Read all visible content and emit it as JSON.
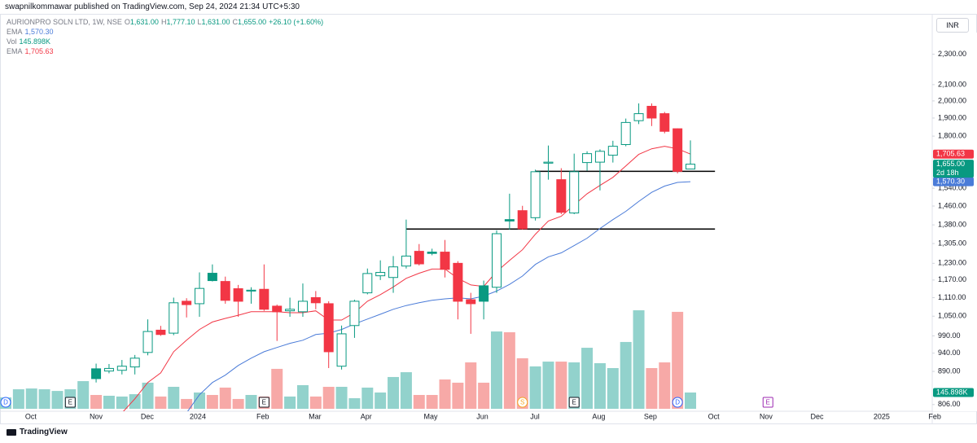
{
  "header": {
    "publisher": "swapnilkommawar published on TradingView.com, Sep 24, 2024 21:34 UTC+5:30"
  },
  "chart_data": {
    "type": "candlestick",
    "title": "AURIONPRO SOLN LTD, 1W, NSE",
    "ohlc_legend": [
      {
        "key": "O",
        "label": "1,631.00"
      },
      {
        "key": "H",
        "label": "1,777.10"
      },
      {
        "key": "L",
        "label": "1,631.00"
      },
      {
        "key": "C",
        "label": "1,655.00"
      }
    ],
    "change": "+26.10 (+1.60%)",
    "currency": "INR",
    "log_scale": true,
    "ylim": [
      790,
      2640
    ],
    "yticks": [
      {
        "value": 806,
        "label": "806.00"
      },
      {
        "value": 890,
        "label": "890.00"
      },
      {
        "value": 940,
        "label": "940.00"
      },
      {
        "value": 990,
        "label": "990.00"
      },
      {
        "value": 1050,
        "label": "1,050.00"
      },
      {
        "value": 1110,
        "label": "1,110.00"
      },
      {
        "value": 1170,
        "label": "1,170.00"
      },
      {
        "value": 1230,
        "label": "1,230.00"
      },
      {
        "value": 1305,
        "label": "1,305.00"
      },
      {
        "value": 1380,
        "label": "1,380.00"
      },
      {
        "value": 1460,
        "label": "1,460.00"
      },
      {
        "value": 1540,
        "label": "1,540.00"
      },
      {
        "value": 1800,
        "label": "1,800.00"
      },
      {
        "value": 1900,
        "label": "1,900.00"
      },
      {
        "value": 2000,
        "label": "2,000.00"
      },
      {
        "value": 2100,
        "label": "2,100.00"
      },
      {
        "value": 2300,
        "label": "2,300.00"
      }
    ],
    "xlim": [
      -0.44,
      71.4
    ],
    "xticks": [
      {
        "value": 1.95,
        "label": "Oct"
      },
      {
        "value": 7,
        "label": "Nov"
      },
      {
        "value": 10.96,
        "label": "Dec"
      },
      {
        "value": 14.87,
        "label": "2024"
      },
      {
        "value": 19.9,
        "label": "Feb"
      },
      {
        "value": 23.94,
        "label": "Mar"
      },
      {
        "value": 27.9,
        "label": "Apr"
      },
      {
        "value": 32.9,
        "label": "May"
      },
      {
        "value": 36.9,
        "label": "Jun"
      },
      {
        "value": 40.96,
        "label": "Jul"
      },
      {
        "value": 45.9,
        "label": "Aug"
      },
      {
        "value": 49.9,
        "label": "Sep"
      },
      {
        "value": 54.8,
        "label": "Oct"
      },
      {
        "value": 58.85,
        "label": "Nov"
      },
      {
        "value": 62.8,
        "label": "Dec"
      },
      {
        "value": 67.8,
        "label": "2025"
      },
      {
        "value": 71.8,
        "label": "Feb"
      }
    ],
    "open": [
      null,
      null,
      null,
      null,
      null,
      null,
      null,
      897,
      891,
      893,
      902,
      942,
      1007,
      998,
      1098,
      1090,
      1194,
      1165,
      1140,
      1132,
      1138,
      1082,
      1067,
      1064,
      1110,
      1090,
      904,
      1021,
      1126,
      1185,
      1179,
      1220,
      1275,
      1272,
      1272,
      1230,
      1103,
      1150,
      1145,
      1402,
      1440,
      1410,
      1660,
      1580,
      1430,
      1663,
      1665,
      1700,
      1755,
      1885,
      1968,
      1925,
      1840,
      1631
    ],
    "high": [
      null,
      null,
      null,
      null,
      null,
      null,
      null,
      911,
      910,
      921,
      935,
      1040,
      1020,
      1110,
      1108,
      1197,
      1226,
      1182,
      1153,
      1145,
      1226,
      1087,
      1110,
      1158,
      1132,
      1098,
      1021,
      1103,
      1211,
      1241,
      1257,
      1402,
      1303,
      1285,
      1319,
      1238,
      1126,
      1168,
      1358,
      1515,
      1461,
      1628,
      1750,
      1635,
      1708,
      1720,
      1730,
      1775,
      1897,
      1985,
      1985,
      1935,
      1842,
      1777.1
    ],
    "low": [
      null,
      null,
      null,
      null,
      null,
      null,
      null,
      861,
      885,
      882,
      882,
      934,
      990,
      992,
      1046,
      1048,
      1165,
      1090,
      1048,
      1090,
      1067,
      975,
      1048,
      1048,
      1072,
      899,
      895,
      984,
      1121,
      1170,
      1126,
      1211,
      1222,
      1260,
      1179,
      1040,
      996,
      1040,
      1126,
      1360,
      1360,
      1398,
      1580,
      1425,
      1425,
      1623,
      1530,
      1663,
      1746,
      1866,
      1855,
      1815,
      1610,
      1631
    ],
    "close": [
      null,
      null,
      null,
      null,
      null,
      null,
      null,
      871,
      898,
      904,
      926,
      1003,
      994,
      1093,
      1087,
      1141,
      1168,
      1101,
      1098,
      1135,
      1072,
      1064,
      1072,
      1098,
      1093,
      944,
      996,
      1098,
      1193,
      1197,
      1217,
      1257,
      1228,
      1267,
      1208,
      1098,
      1090,
      1098,
      1344,
      1396,
      1364,
      1618,
      1665,
      1433,
      1618,
      1708,
      1720,
      1746,
      1875,
      1925,
      1900,
      1826,
      1620,
      1655
    ],
    "up_color": "#089981",
    "down_color": "#f23645",
    "close_label": "1,655.00",
    "countdown": "2d 18h",
    "volume": {
      "name": "Vol",
      "last_label": "145.898K",
      "up_color": "#92d2cc",
      "down_color": "#f7a9a7",
      "y2lim": [
        0,
        1000
      ],
      "values": [
        102,
        175,
        182,
        175,
        160,
        175,
        248,
        124,
        117,
        110,
        131,
        234,
        110,
        197,
        88,
        146,
        124,
        190,
        88,
        124,
        110,
        358,
        110,
        212,
        110,
        197,
        197,
        95,
        190,
        146,
        285,
        328,
        124,
        124,
        263,
        234,
        416,
        234,
        693,
        686,
        453,
        380,
        423,
        423,
        416,
        547,
        409,
        365,
        599,
        883,
        365,
        416,
        869,
        145.898
      ]
    },
    "series": [
      {
        "name": "EMA",
        "color": "#4a7bd8",
        "last_label": "1,570.30",
        "values": [
          null,
          null,
          null,
          null,
          null,
          null,
          null,
          null,
          null,
          null,
          null,
          null,
          null,
          null,
          786,
          830,
          861,
          880,
          906,
          926,
          944,
          956,
          968,
          977,
          994,
          998,
          1009,
          1026,
          1041,
          1056,
          1072,
          1084,
          1093,
          1101,
          1106,
          1109,
          1106,
          1115,
          1132,
          1155,
          1184,
          1226,
          1254,
          1269,
          1297,
          1326,
          1365,
          1402,
          1437,
          1480,
          1521,
          1550,
          1567,
          1570.3
        ]
      },
      {
        "name": "EMA",
        "color": "#f23645",
        "last_label": "1,705.63",
        "values": [
          null,
          null,
          null,
          null,
          null,
          null,
          null,
          null,
          null,
          786,
          820,
          861,
          886,
          944,
          977,
          1009,
          1032,
          1043,
          1053,
          1064,
          1064,
          1064,
          1061,
          1061,
          1067,
          1038,
          1038,
          1061,
          1098,
          1120,
          1146,
          1176,
          1194,
          1209,
          1209,
          1176,
          1153,
          1148,
          1200,
          1241,
          1281,
          1342,
          1396,
          1416,
          1465,
          1515,
          1553,
          1591,
          1646,
          1704,
          1733,
          1746,
          1733,
          1705.63
        ]
      }
    ],
    "levels": [
      {
        "value": 1620,
        "from": 41,
        "to": 54.9
      },
      {
        "value": 1363,
        "from": 31,
        "to": 54.9
      }
    ],
    "events": [
      {
        "label": "D",
        "x": 0,
        "shape": "circle",
        "color": "#2962ff"
      },
      {
        "label": "E",
        "x": 5,
        "shape": "square",
        "color": "#131722"
      },
      {
        "label": "E",
        "x": 20,
        "shape": "square",
        "color": "#131722"
      },
      {
        "label": "S",
        "x": 40,
        "shape": "circle",
        "color": "#f5a623"
      },
      {
        "label": "E",
        "x": 44,
        "shape": "square",
        "color": "#131722"
      },
      {
        "label": "D",
        "x": 52,
        "shape": "circle",
        "color": "#2962ff"
      },
      {
        "label": "E",
        "x": 59,
        "shape": "square",
        "color": "#9c27b0"
      }
    ]
  },
  "footer": {
    "brand": "TradingView"
  }
}
